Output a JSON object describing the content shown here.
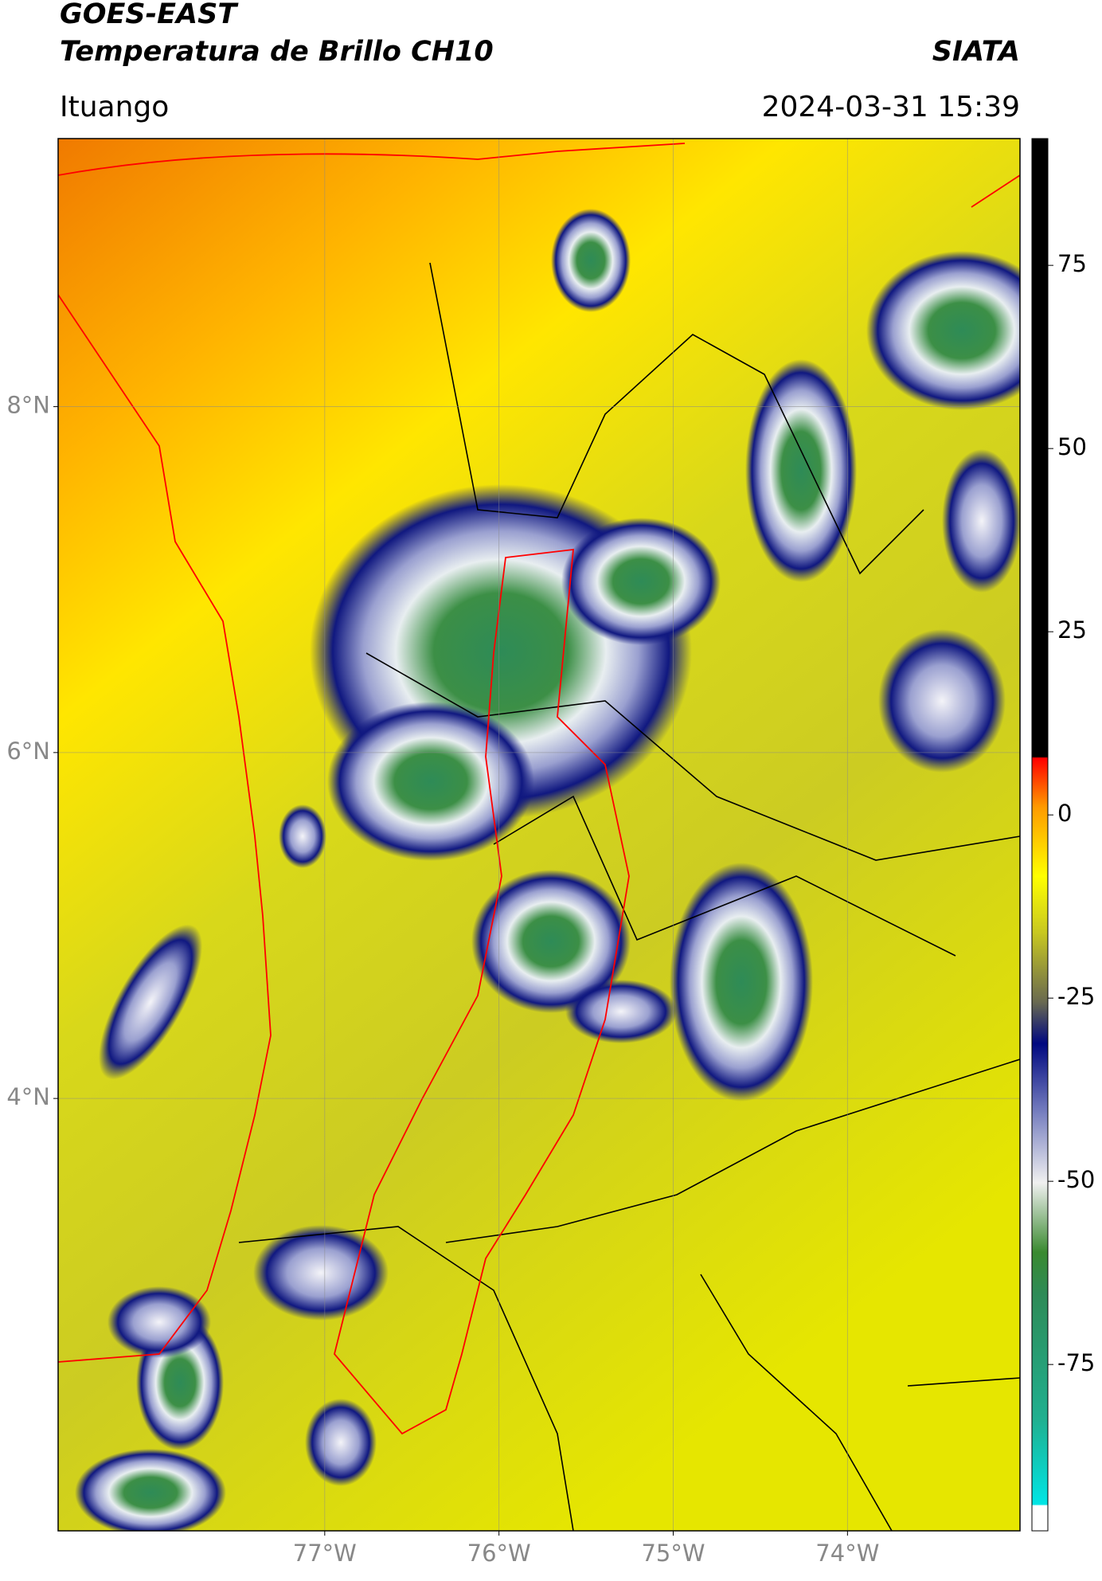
{
  "chart_data": {
    "type": "map",
    "title": "GOES-EAST",
    "subtitle": "Temperatura de Brillo CH10",
    "source": "SIATA",
    "location": "Ituango",
    "timestamp": "2024-03-31 15:39",
    "xlim": [
      -78.53,
      -73.01
    ],
    "ylim": [
      1.5,
      9.55
    ],
    "xticks": [
      {
        "value": -77,
        "label": "77°W"
      },
      {
        "value": -76,
        "label": "76°W"
      },
      {
        "value": -75,
        "label": "75°W"
      },
      {
        "value": -74,
        "label": "74°W"
      }
    ],
    "yticks": [
      {
        "value": 8,
        "label": "8°N"
      },
      {
        "value": 6,
        "label": "6°N"
      },
      {
        "value": 4,
        "label": "4°N"
      }
    ],
    "grid": true,
    "colorbar": {
      "lim": [
        -97.7,
        92.3
      ],
      "ticks": [
        75,
        50,
        25,
        0,
        -25,
        -50,
        -75
      ]
    }
  }
}
